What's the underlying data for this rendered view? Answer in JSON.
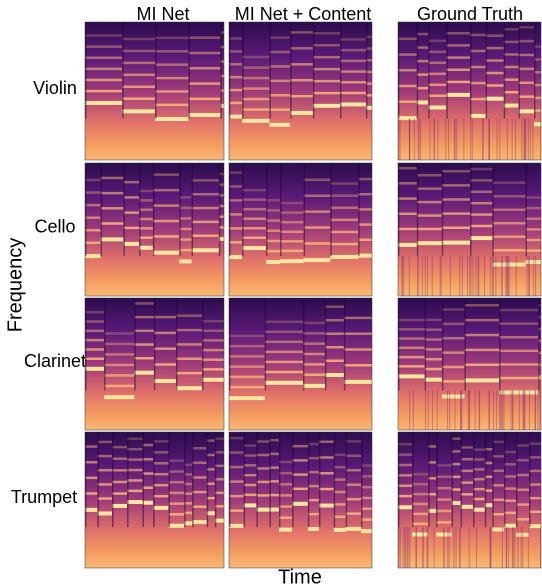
{
  "columns": [
    "MI Net",
    "MI Net + Content",
    "Ground Truth"
  ],
  "rows": [
    "Violin",
    "Cello",
    "Clarinet",
    "Trumpet"
  ],
  "axes": {
    "x_label": "Time",
    "y_label": "Frequency"
  }
}
